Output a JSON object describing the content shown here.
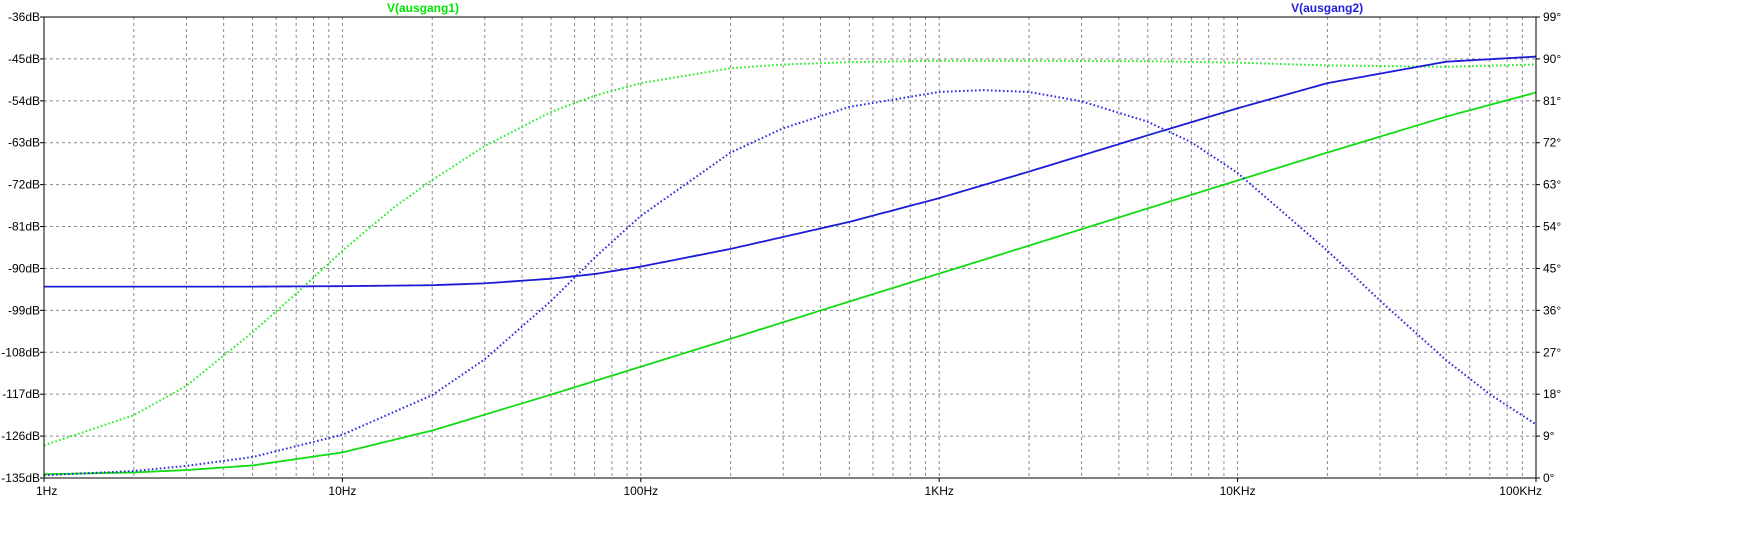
{
  "chart_data": {
    "type": "line",
    "x_scale": "log",
    "xlim": [
      1,
      100000
    ],
    "x_ticks": [
      {
        "value": 1,
        "label": "1Hz"
      },
      {
        "value": 10,
        "label": "10Hz"
      },
      {
        "value": 100,
        "label": "100Hz"
      },
      {
        "value": 1000,
        "label": "1KHz"
      },
      {
        "value": 10000,
        "label": "10KHz"
      },
      {
        "value": 100000,
        "label": "100KHz"
      }
    ],
    "y_left": {
      "unit": "dB",
      "ylim": [
        -135,
        -36
      ],
      "ticks": [
        {
          "value": -36,
          "label": "-36dB"
        },
        {
          "value": -45,
          "label": "-45dB"
        },
        {
          "value": -54,
          "label": "-54dB"
        },
        {
          "value": -63,
          "label": "-63dB"
        },
        {
          "value": -72,
          "label": "-72dB"
        },
        {
          "value": -81,
          "label": "-81dB"
        },
        {
          "value": -90,
          "label": "-90dB"
        },
        {
          "value": -99,
          "label": "-99dB"
        },
        {
          "value": -108,
          "label": "-108dB"
        },
        {
          "value": -117,
          "label": "-117dB"
        },
        {
          "value": -126,
          "label": "-126dB"
        },
        {
          "value": -135,
          "label": "-135dB"
        }
      ]
    },
    "y_right": {
      "unit": "deg",
      "ylim": [
        0,
        99
      ],
      "ticks": [
        {
          "value": 99,
          "label": "99°"
        },
        {
          "value": 90,
          "label": "90°"
        },
        {
          "value": 81,
          "label": "81°"
        },
        {
          "value": 72,
          "label": "72°"
        },
        {
          "value": 63,
          "label": "63°"
        },
        {
          "value": 54,
          "label": "54°"
        },
        {
          "value": 45,
          "label": "45°"
        },
        {
          "value": 36,
          "label": "36°"
        },
        {
          "value": 27,
          "label": "27°"
        },
        {
          "value": 18,
          "label": "18°"
        },
        {
          "value": 9,
          "label": "9°"
        },
        {
          "value": 0,
          "label": "0°"
        }
      ]
    },
    "grid": true,
    "grid_style": "dashed",
    "legend": [
      {
        "label": "V(ausgang1)",
        "color": "#00e600",
        "position": "top-left"
      },
      {
        "label": "V(ausgang2)",
        "color": "#2020dd",
        "position": "top-right"
      }
    ],
    "series": [
      {
        "name": "V(ausgang1)",
        "quantity": "magnitude",
        "axis": "left",
        "style": "solid",
        "color": "#10dd10",
        "x": [
          1,
          2,
          3,
          5,
          10,
          20,
          50,
          100,
          200,
          500,
          1000,
          2000,
          5000,
          10000,
          20000,
          50000,
          100000
        ],
        "y": [
          -134.2,
          -133.8,
          -133.3,
          -132.3,
          -129.5,
          -124.8,
          -117.1,
          -111.1,
          -105.1,
          -97.1,
          -91.1,
          -85.1,
          -77.1,
          -71.1,
          -65.1,
          -57.4,
          -52.2
        ]
      },
      {
        "name": "V(ausgang1)",
        "quantity": "phase",
        "axis": "right",
        "style": "dotted",
        "color": "#22ee22",
        "x": [
          1,
          2,
          3,
          5,
          7,
          10,
          15,
          20,
          30,
          50,
          70,
          100,
          200,
          300,
          500,
          1000,
          2000,
          5000,
          10000,
          20000,
          50000,
          100000
        ],
        "y": [
          7.0,
          13.5,
          19.8,
          31.3,
          39.6,
          48.8,
          58.3,
          64.0,
          71.3,
          78.6,
          82.1,
          84.8,
          88.0,
          88.8,
          89.3,
          89.6,
          89.6,
          89.5,
          89.2,
          88.6,
          88.3,
          88.8
        ]
      },
      {
        "name": "V(ausgang2)",
        "quantity": "magnitude",
        "axis": "left",
        "style": "solid",
        "color": "#1b1bd8",
        "x": [
          1,
          5,
          10,
          20,
          30,
          50,
          70,
          100,
          200,
          500,
          1000,
          2000,
          5000,
          10000,
          20000,
          50000,
          100000
        ],
        "y": [
          -93.9,
          -93.9,
          -93.8,
          -93.6,
          -93.2,
          -92.2,
          -91.2,
          -89.6,
          -85.8,
          -80.0,
          -74.9,
          -69.2,
          -61.4,
          -55.6,
          -50.2,
          -45.6,
          -44.5
        ]
      },
      {
        "name": "V(ausgang2)",
        "quantity": "phase",
        "axis": "right",
        "style": "dotted",
        "color": "#2a2ae0",
        "x": [
          1,
          2,
          3,
          5,
          10,
          20,
          30,
          50,
          70,
          100,
          200,
          300,
          500,
          1000,
          1400,
          2000,
          3000,
          5000,
          7000,
          10000,
          20000,
          30000,
          50000,
          70000,
          100000
        ],
        "y": [
          0.6,
          1.5,
          2.6,
          4.5,
          9.3,
          17.8,
          25.5,
          38.0,
          47.3,
          56.3,
          69.9,
          75.1,
          79.7,
          82.9,
          83.3,
          82.9,
          80.9,
          76.5,
          72.1,
          65.5,
          48.8,
          38.1,
          25.3,
          18.0,
          11.5
        ]
      }
    ]
  }
}
